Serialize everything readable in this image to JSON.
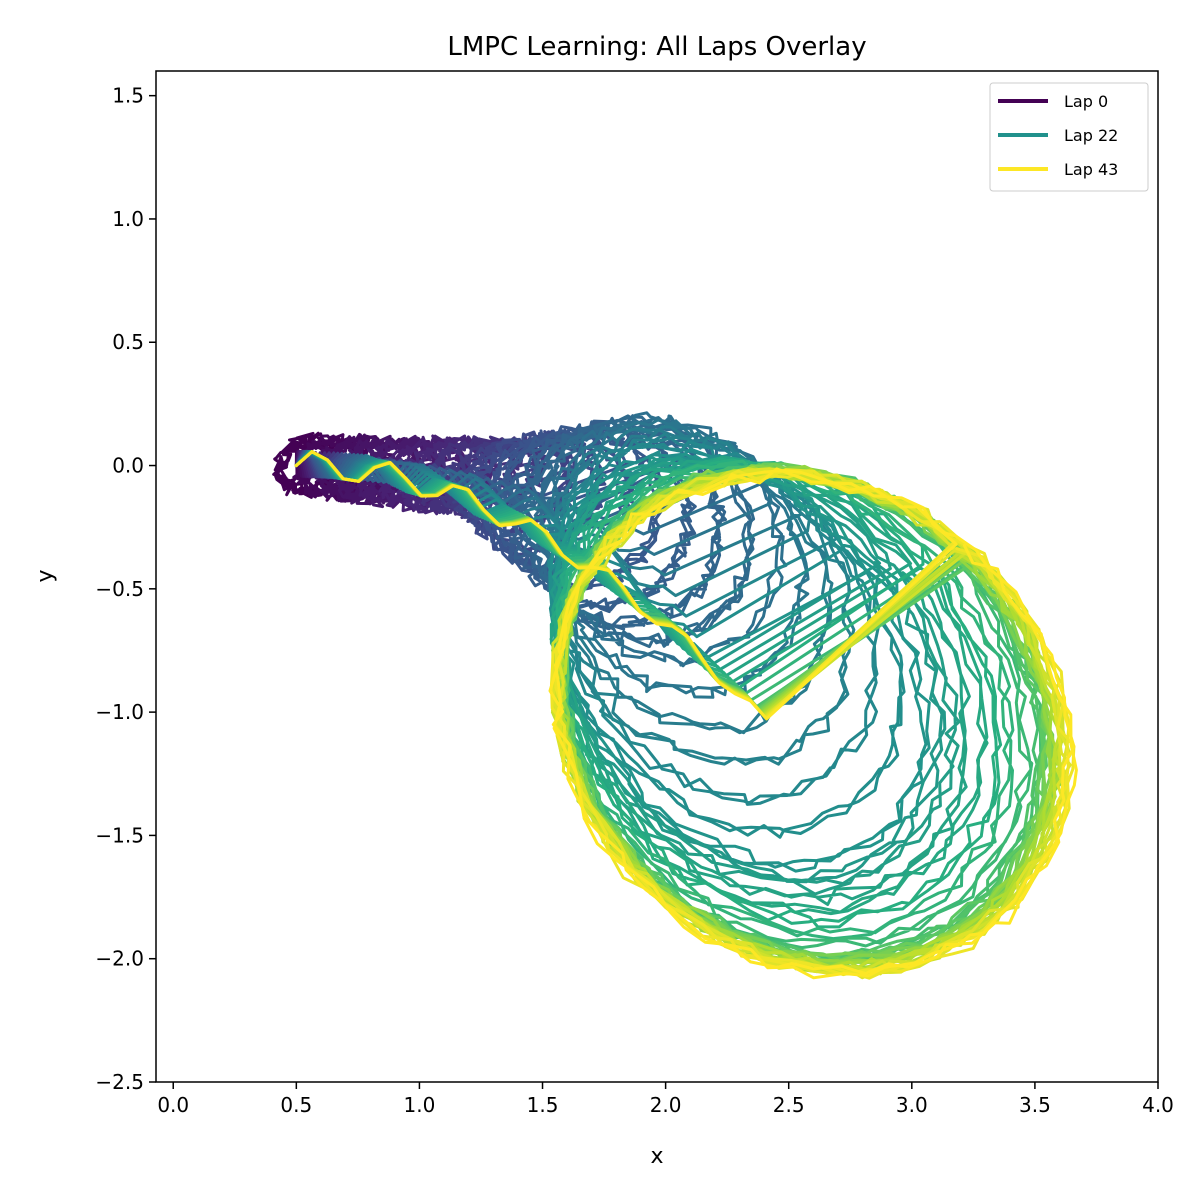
{
  "chart_data": {
    "type": "line",
    "title": "LMPC Learning: All Laps Overlay",
    "xlabel": "x",
    "ylabel": "y",
    "xlim": [
      -0.07,
      4.0
    ],
    "ylim": [
      -2.5,
      1.6
    ],
    "xticks": [
      "0.0",
      "0.5",
      "1.0",
      "1.5",
      "2.0",
      "2.5",
      "3.0",
      "3.5",
      "4.0"
    ],
    "yticks": [
      "1.5",
      "1.0",
      "0.5",
      "0.0",
      "−0.5",
      "−1.0",
      "−1.5",
      "−2.0",
      "−2.5"
    ],
    "grid": false,
    "legend_position": "top-right",
    "colormap": "viridis",
    "lap_count": 44,
    "series": [
      {
        "name": "Lap 0",
        "lap": 0,
        "color": "#440154"
      },
      {
        "name": "Lap 22",
        "lap": 22,
        "color": "#21918c"
      },
      {
        "name": "Lap 43",
        "lap": 43,
        "color": "#fde725"
      }
    ],
    "lap_shapes": [
      {
        "lap": 0,
        "center": [
          0.55,
          0.0
        ],
        "rx": 0.12,
        "ry": 0.1
      },
      {
        "lap": 8,
        "center": [
          1.3,
          -0.05
        ],
        "rx": 0.2,
        "ry": 0.12
      },
      {
        "lap": 16,
        "center": [
          2.0,
          -0.3
        ],
        "rx": 0.45,
        "ry": 0.5
      },
      {
        "lap": 22,
        "center": [
          2.3,
          -0.8
        ],
        "rx": 0.65,
        "ry": 0.9
      },
      {
        "lap": 30,
        "center": [
          2.55,
          -1.0
        ],
        "rx": 0.9,
        "ry": 1.05
      },
      {
        "lap": 43,
        "center": [
          2.6,
          -1.05
        ],
        "rx": 0.95,
        "ry": 1.1
      }
    ]
  }
}
